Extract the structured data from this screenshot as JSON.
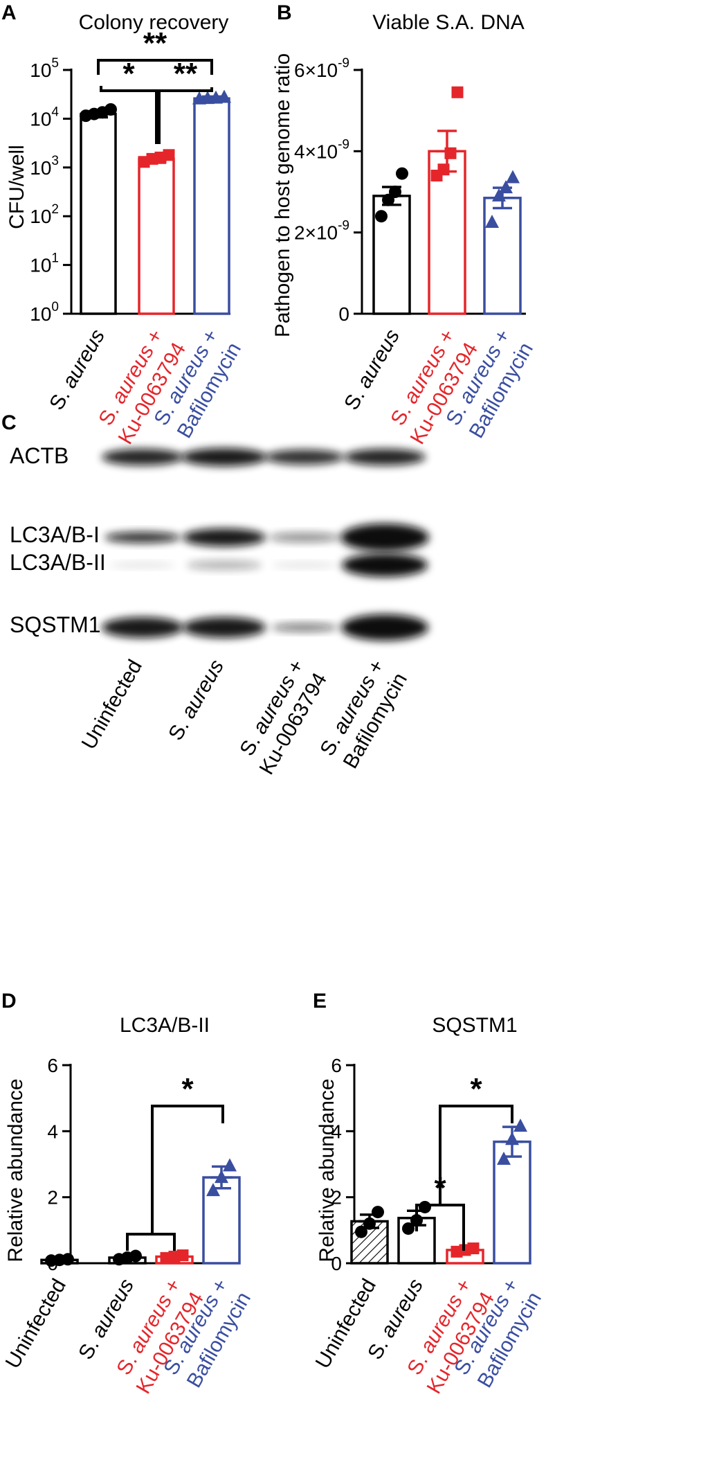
{
  "colors": {
    "black": "#000000",
    "red": "#e4262b",
    "blue": "#3a4ea0"
  },
  "panels": {
    "a": "A",
    "b": "B",
    "c": "C",
    "d": "D",
    "e": "E"
  },
  "chart_data": [
    {
      "id": "A",
      "type": "bar",
      "title": "Colony recovery",
      "ylabel": "CFU/well",
      "yscale": "log",
      "ylim": [
        1,
        100000
      ],
      "yticks": [
        "10",
        "10",
        "10",
        "10",
        "10",
        "10"
      ],
      "yexponents": [
        "0",
        "1",
        "2",
        "3",
        "4",
        "5"
      ],
      "categories": [
        {
          "lines": [
            [
              [
                "S. ",
                "normal"
              ],
              [
                "aureus",
                "italic"
              ]
            ]
          ],
          "color": "#000000"
        },
        {
          "lines": [
            [
              [
                "S. ",
                "normal"
              ],
              [
                "aureus",
                "italic"
              ],
              [
                " +",
                "normal"
              ]
            ],
            [
              [
                "Ku-0063794",
                "normal"
              ]
            ]
          ],
          "color": "#e4262b"
        },
        {
          "lines": [
            [
              [
                "S. ",
                "normal"
              ],
              [
                "aureus",
                "italic"
              ],
              [
                " +",
                "normal"
              ]
            ],
            [
              [
                "Bafilomycin",
                "normal"
              ]
            ]
          ],
          "color": "#3a4ea0"
        }
      ],
      "values": [
        12500,
        1500,
        26000
      ],
      "errors": [
        1800,
        250,
        2500
      ],
      "points": [
        [
          11500,
          12500,
          13500,
          15500
        ],
        [
          1300,
          1500,
          1600,
          1800
        ],
        [
          25500,
          26000,
          26500,
          27500
        ]
      ],
      "markers": [
        "circle",
        "square",
        "triangle"
      ],
      "significance": [
        "*",
        "**",
        "**"
      ]
    },
    {
      "id": "B",
      "type": "bar",
      "title": "Viable S.A. DNA",
      "ylabel": "Pathogen to host genome ratio",
      "ylim": [
        0,
        6e-09
      ],
      "yticks": [
        "0",
        "2×10",
        "4×10",
        "6×10"
      ],
      "yexponents": [
        "",
        "-9",
        "-9",
        "-9"
      ],
      "categories": [
        {
          "lines": [
            [
              [
                "S. ",
                "normal"
              ],
              [
                "aureus",
                "italic"
              ]
            ]
          ],
          "color": "#000000"
        },
        {
          "lines": [
            [
              [
                "S. ",
                "normal"
              ],
              [
                "aureus",
                "italic"
              ],
              [
                " +",
                "normal"
              ]
            ],
            [
              [
                "Ku-0063794",
                "normal"
              ]
            ]
          ],
          "color": "#e4262b"
        },
        {
          "lines": [
            [
              [
                "S. ",
                "normal"
              ],
              [
                "aureus",
                "italic"
              ],
              [
                " +",
                "normal"
              ]
            ],
            [
              [
                "Bafilomycin",
                "normal"
              ]
            ]
          ],
          "color": "#3a4ea0"
        }
      ],
      "values": [
        2.9e-09,
        4e-09,
        2.85e-09
      ],
      "errors": [
        2.2e-10,
        5e-10,
        2.5e-10
      ],
      "points": [
        [
          2.4e-09,
          2.8e-09,
          3e-09,
          3.45e-09
        ],
        [
          3.4e-09,
          3.55e-09,
          3.95e-09,
          5.45e-09
        ],
        [
          2.25e-09,
          2.9e-09,
          3.1e-09,
          3.35e-09
        ]
      ],
      "markers": [
        "circle",
        "square",
        "triangle"
      ]
    },
    {
      "id": "D",
      "type": "bar",
      "title": "LC3A/B-II",
      "ylabel": "Relative abundance",
      "ylim": [
        0,
        6
      ],
      "yticks": [
        "0",
        "2",
        "4",
        "6"
      ],
      "categories": [
        {
          "lines": [
            [
              [
                "Uninfected",
                "normal"
              ]
            ]
          ],
          "color": "#000000"
        },
        {
          "lines": [
            [
              [
                "S. ",
                "normal"
              ],
              [
                "aureus",
                "italic"
              ]
            ]
          ],
          "color": "#000000"
        },
        {
          "lines": [
            [
              [
                "S. ",
                "normal"
              ],
              [
                "aureus",
                "italic"
              ],
              [
                " +",
                "normal"
              ]
            ],
            [
              [
                "Ku-0063794",
                "normal"
              ]
            ]
          ],
          "color": "#e4262b"
        },
        {
          "lines": [
            [
              [
                "S. ",
                "normal"
              ],
              [
                "aureus",
                "italic"
              ],
              [
                " +",
                "normal"
              ]
            ],
            [
              [
                "Bafilomycin",
                "normal"
              ]
            ]
          ],
          "color": "#3a4ea0"
        }
      ],
      "values": [
        0.1,
        0.17,
        0.2,
        2.6
      ],
      "errors": [
        0.02,
        0.05,
        0.05,
        0.33
      ],
      "points": [
        [
          0.08,
          0.1,
          0.12
        ],
        [
          0.12,
          0.17,
          0.22
        ],
        [
          0.16,
          0.2,
          0.24
        ],
        [
          2.2,
          2.6,
          2.95
        ]
      ],
      "markers": [
        "circle",
        "circle",
        "square",
        "triangle"
      ],
      "significance": [
        "*"
      ]
    },
    {
      "id": "E",
      "type": "bar",
      "title": "SQSTM1",
      "ylabel": "Relative abundance",
      "ylim": [
        0,
        6
      ],
      "yticks": [
        "0",
        "2",
        "4",
        "6"
      ],
      "categories": [
        {
          "lines": [
            [
              [
                "Uninfected",
                "normal"
              ]
            ]
          ],
          "color": "#000000"
        },
        {
          "lines": [
            [
              [
                "S. ",
                "normal"
              ],
              [
                "aureus",
                "italic"
              ]
            ]
          ],
          "color": "#000000"
        },
        {
          "lines": [
            [
              [
                "S. ",
                "normal"
              ],
              [
                "aureus",
                "italic"
              ],
              [
                " +",
                "normal"
              ]
            ],
            [
              [
                "Ku-0063794",
                "normal"
              ]
            ]
          ],
          "color": "#e4262b"
        },
        {
          "lines": [
            [
              [
                "S. ",
                "normal"
              ],
              [
                "aureus",
                "italic"
              ],
              [
                " +",
                "normal"
              ]
            ],
            [
              [
                "Bafilomycin",
                "normal"
              ]
            ]
          ],
          "color": "#3a4ea0"
        }
      ],
      "values": [
        1.27,
        1.37,
        0.4,
        3.68
      ],
      "errors": [
        0.2,
        0.22,
        0.05,
        0.45
      ],
      "points": [
        [
          0.95,
          1.2,
          1.55
        ],
        [
          1.05,
          1.3,
          1.7
        ],
        [
          0.35,
          0.4,
          0.45
        ],
        [
          3.15,
          3.75,
          4.15
        ]
      ],
      "markers": [
        "circle",
        "circle",
        "square",
        "triangle"
      ],
      "significance": [
        "*",
        "*"
      ]
    }
  ],
  "blot": {
    "bands": [
      "ACTB",
      "LC3A/B-I",
      "LC3A/B-II",
      "SQSTM1"
    ],
    "lanes": [
      {
        "lines": [
          [
            [
              "Uninfected",
              "normal"
            ]
          ]
        ]
      },
      {
        "lines": [
          [
            [
              "S. ",
              "normal"
            ],
            [
              "aureus",
              "italic"
            ]
          ]
        ]
      },
      {
        "lines": [
          [
            [
              "S. ",
              "normal"
            ],
            [
              "aureus",
              "italic"
            ],
            [
              " +",
              "normal"
            ]
          ],
          [
            [
              "Ku-0063794",
              "normal"
            ]
          ]
        ]
      },
      {
        "lines": [
          [
            [
              "S. ",
              "normal"
            ],
            [
              "aureus",
              "italic"
            ],
            [
              " +",
              "normal"
            ]
          ],
          [
            [
              "Bafilomycin",
              "normal"
            ]
          ]
        ]
      }
    ]
  }
}
